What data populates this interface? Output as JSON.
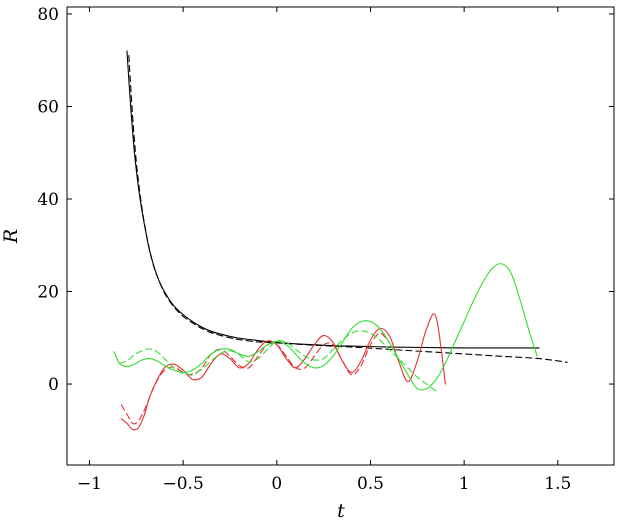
{
  "chart_data": {
    "type": "line",
    "xlabel": "t",
    "ylabel": "R",
    "xlim": [
      -1.12,
      1.8
    ],
    "ylim": [
      -17.5,
      81.5
    ],
    "xticks": [
      -1,
      -0.5,
      0,
      0.5,
      1,
      1.5
    ],
    "xtick_labels": [
      "−1",
      "−0.5",
      "0",
      "0.5",
      "1",
      "1.5"
    ],
    "yticks": [
      0,
      20,
      40,
      60,
      80
    ],
    "ytick_labels": [
      "0",
      "20",
      "40",
      "60",
      "80"
    ],
    "grid": false,
    "series": [
      {
        "color": "#000000",
        "style": "solid",
        "x": [
          -0.8,
          -0.78,
          -0.76,
          -0.74,
          -0.72,
          -0.7,
          -0.68,
          -0.66,
          -0.64,
          -0.62,
          -0.6,
          -0.57,
          -0.54,
          -0.5,
          -0.45,
          -0.4,
          -0.35,
          -0.3,
          -0.25,
          -0.2,
          -0.1,
          0,
          0.1,
          0.2,
          0.3,
          0.4,
          0.6,
          0.8,
          1.0,
          1.2,
          1.4
        ],
        "y": [
          72,
          60,
          50,
          43,
          37.5,
          33,
          29,
          26,
          23.5,
          21.5,
          20,
          18,
          16.5,
          15,
          13.5,
          12.3,
          11.4,
          10.8,
          10.3,
          9.9,
          9.4,
          9.0,
          8.7,
          8.5,
          8.3,
          8.2,
          8.0,
          7.9,
          7.8,
          7.8,
          7.8
        ]
      },
      {
        "color": "#000000",
        "style": "dashed",
        "x": [
          -0.79,
          -0.77,
          -0.75,
          -0.73,
          -0.71,
          -0.69,
          -0.67,
          -0.65,
          -0.63,
          -0.61,
          -0.59,
          -0.56,
          -0.53,
          -0.5,
          -0.45,
          -0.4,
          -0.35,
          -0.3,
          -0.25,
          -0.2,
          -0.1,
          0,
          0.2,
          0.4,
          0.6,
          0.8,
          1.0,
          1.2,
          1.4,
          1.55
        ],
        "y": [
          71,
          58,
          48,
          41,
          35.5,
          31,
          27.5,
          24.5,
          22.5,
          20.5,
          19,
          17.2,
          15.8,
          14.6,
          13.2,
          12,
          11.1,
          10.5,
          10,
          9.6,
          9.1,
          8.9,
          8.4,
          8.0,
          7.5,
          7.0,
          6.5,
          6.0,
          5.5,
          4.7
        ]
      },
      {
        "color": "#e53030",
        "style": "solid",
        "x": [
          -0.83,
          -0.8,
          -0.77,
          -0.74,
          -0.71,
          -0.68,
          -0.65,
          -0.6,
          -0.55,
          -0.5,
          -0.45,
          -0.4,
          -0.35,
          -0.3,
          -0.25,
          -0.2,
          -0.15,
          -0.1,
          -0.05,
          0,
          0.05,
          0.1,
          0.15,
          0.2,
          0.25,
          0.3,
          0.35,
          0.4,
          0.45,
          0.5,
          0.55,
          0.6,
          0.65,
          0.7,
          0.75,
          0.8,
          0.85,
          0.9
        ],
        "y": [
          -7.5,
          -8.5,
          -9.8,
          -9.5,
          -7,
          -3,
          0,
          3.5,
          4.3,
          3,
          1,
          1.5,
          4.5,
          6.5,
          5.5,
          3.5,
          4.5,
          7.5,
          9.3,
          8.5,
          5.5,
          3.5,
          5.5,
          8.5,
          10.5,
          9,
          5,
          2.5,
          5,
          9.5,
          12,
          10.5,
          5,
          0.5,
          5,
          12,
          14.5,
          0
        ]
      },
      {
        "color": "#e53030",
        "style": "dashed",
        "x": [
          -0.83,
          -0.8,
          -0.77,
          -0.74,
          -0.7,
          -0.66,
          -0.62,
          -0.58,
          -0.54,
          -0.5,
          -0.45,
          -0.4,
          -0.35,
          -0.3,
          -0.25,
          -0.2,
          -0.15,
          -0.1,
          -0.05,
          0,
          0.05,
          0.1,
          0.15,
          0.2,
          0.25,
          0.3,
          0.35,
          0.4,
          0.45,
          0.5,
          0.55,
          0.6
        ],
        "y": [
          -4.5,
          -6.5,
          -8.5,
          -8,
          -5,
          -1,
          2,
          3.5,
          3.5,
          2.5,
          2,
          3.5,
          6.5,
          7.5,
          6,
          4,
          3.5,
          6,
          8.5,
          8.5,
          6,
          3.5,
          3.5,
          6,
          8.5,
          8.5,
          5,
          2,
          4,
          8.5,
          11,
          9
        ]
      },
      {
        "color": "#33dd33",
        "style": "solid",
        "x": [
          -0.87,
          -0.84,
          -0.8,
          -0.76,
          -0.72,
          -0.68,
          -0.64,
          -0.6,
          -0.55,
          -0.5,
          -0.45,
          -0.4,
          -0.35,
          -0.3,
          -0.25,
          -0.2,
          -0.15,
          -0.1,
          -0.05,
          0,
          0.05,
          0.1,
          0.15,
          0.2,
          0.25,
          0.3,
          0.35,
          0.4,
          0.45,
          0.5,
          0.55,
          0.6,
          0.65,
          0.7,
          0.75,
          0.8,
          0.85,
          0.9,
          0.95,
          1.0,
          1.05,
          1.1,
          1.15,
          1.2,
          1.25,
          1.3,
          1.35,
          1.39
        ],
        "y": [
          7,
          4.5,
          3.8,
          4.3,
          5.2,
          5.5,
          5,
          4,
          3,
          2.5,
          3,
          4.5,
          6.5,
          7.5,
          7.5,
          6.5,
          6,
          7,
          8.5,
          9.2,
          8.5,
          6.5,
          4.5,
          3.5,
          4,
          6,
          9,
          12,
          13.5,
          13.5,
          12,
          9,
          5.5,
          2,
          -1,
          -1,
          1,
          4.5,
          9,
          13.5,
          18,
          22,
          25,
          26,
          24,
          18,
          11,
          6
        ]
      },
      {
        "color": "#33dd33",
        "style": "dashed",
        "x": [
          -0.84,
          -0.8,
          -0.76,
          -0.72,
          -0.68,
          -0.64,
          -0.6,
          -0.55,
          -0.5,
          -0.45,
          -0.4,
          -0.35,
          -0.3,
          -0.25,
          -0.2,
          -0.15,
          -0.1,
          -0.05,
          0,
          0.05,
          0.1,
          0.15,
          0.2,
          0.25,
          0.3,
          0.35,
          0.4,
          0.45,
          0.5,
          0.55,
          0.6,
          0.65,
          0.7,
          0.75,
          0.8,
          0.85
        ],
        "y": [
          4.5,
          5,
          6.3,
          7.2,
          7.6,
          7,
          5.5,
          3.5,
          2.3,
          2.2,
          3.2,
          5,
          6.6,
          7.2,
          6.3,
          4.8,
          5.5,
          7.5,
          9.3,
          9,
          7.5,
          6,
          5.2,
          5.5,
          7.5,
          9.5,
          11,
          11.5,
          11,
          9.5,
          7.5,
          5.5,
          3.5,
          1.5,
          0,
          -1.5
        ]
      }
    ]
  }
}
